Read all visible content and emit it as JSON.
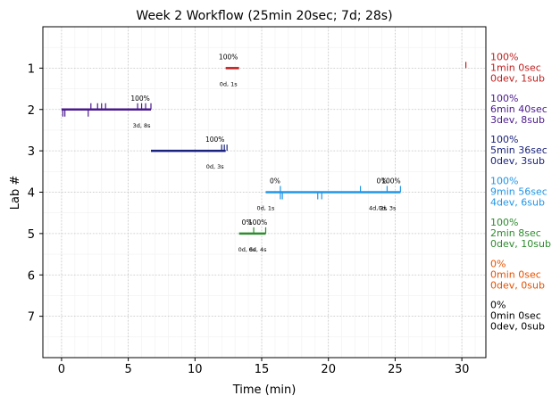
{
  "chart_data": {
    "type": "gantt",
    "title": "Week 2 Workflow (25min 20sec; 7d; 28s)",
    "xlabel": "Time (min)",
    "ylabel": "Lab #",
    "xlim": [
      -1.4,
      31.8
    ],
    "ylim": [
      8.0,
      0.0
    ],
    "xticks": [
      0,
      5,
      10,
      15,
      20,
      25,
      30
    ],
    "yticks": [
      1,
      2,
      3,
      4,
      5,
      6,
      7
    ],
    "grid": true,
    "labs": [
      {
        "lab": 1,
        "color": "#c02020",
        "bar": [
          12.3,
          13.3
        ],
        "ticks_down": [],
        "ticks_up": [
          30.3
        ],
        "annotations_above": [
          {
            "x": 12.5,
            "text": "100%"
          }
        ],
        "annotations_below": [
          {
            "x": 12.5,
            "text": "0d, 1s"
          }
        ],
        "summary": [
          "100%",
          "1min 0sec",
          "0dev, 1sub"
        ]
      },
      {
        "lab": 2,
        "color": "#4b1a8e",
        "bar": [
          0.0,
          6.7
        ],
        "ticks_down": [
          0.1,
          0.25,
          2.0
        ],
        "ticks_up": [
          2.2,
          2.7,
          3.0,
          3.3,
          5.7,
          6.0,
          6.3,
          6.7
        ],
        "annotations_above": [
          {
            "x": 5.9,
            "text": "100%"
          }
        ],
        "annotations_below": [
          {
            "x": 6.0,
            "text": "3d, 8s"
          }
        ],
        "summary": [
          "100%",
          "6min 40sec",
          "3dev, 8sub"
        ]
      },
      {
        "lab": 3,
        "color": "#1a237e",
        "bar": [
          6.7,
          12.3
        ],
        "ticks_down": [],
        "ticks_up": [
          12.0,
          12.2,
          12.4
        ],
        "annotations_above": [
          {
            "x": 11.5,
            "text": "100%"
          }
        ],
        "annotations_below": [
          {
            "x": 11.5,
            "text": "0d, 3s"
          }
        ],
        "summary": [
          "100%",
          "5min 36sec",
          "0dev, 3sub"
        ]
      },
      {
        "lab": 4,
        "color": "#2196e8",
        "bar": [
          15.3,
          25.4
        ],
        "ticks_down": [
          16.4,
          16.55,
          19.2,
          19.5
        ],
        "ticks_up": [
          16.4,
          22.4,
          24.4,
          25.4
        ],
        "annotations_above": [
          {
            "x": 16.0,
            "text": "0%"
          },
          {
            "x": 24.0,
            "text": "0%"
          },
          {
            "x": 24.7,
            "text": "100%"
          }
        ],
        "annotations_below": [
          {
            "x": 15.3,
            "text": "0d, 1s"
          },
          {
            "x": 23.7,
            "text": "4d, 2s"
          },
          {
            "x": 24.4,
            "text": "0d, 3s"
          }
        ],
        "summary": [
          "100%",
          "9min 56sec",
          "4dev, 6sub"
        ]
      },
      {
        "lab": 5,
        "color": "#2e8b2e",
        "bar": [
          13.3,
          15.3
        ],
        "ticks_down": [],
        "ticks_up": [
          14.4,
          15.3
        ],
        "annotations_above": [
          {
            "x": 13.9,
            "text": "0%"
          },
          {
            "x": 14.7,
            "text": "100%"
          }
        ],
        "annotations_below": [
          {
            "x": 13.9,
            "text": "0d, 6s"
          },
          {
            "x": 14.7,
            "text": "0d, 4s"
          }
        ],
        "summary": [
          "100%",
          "2min 8sec",
          "0dev, 10sub"
        ]
      },
      {
        "lab": 6,
        "color": "#e65100",
        "bar": null,
        "ticks_down": [],
        "ticks_up": [],
        "annotations_above": [],
        "annotations_below": [],
        "summary": [
          "0%",
          "0min 0sec",
          "0dev, 0sub"
        ]
      },
      {
        "lab": 7,
        "color": "#000000",
        "bar": null,
        "ticks_down": [],
        "ticks_up": [],
        "annotations_above": [],
        "annotations_below": [],
        "summary": [
          "0%",
          "0min 0sec",
          "0dev, 0sub"
        ]
      }
    ]
  }
}
